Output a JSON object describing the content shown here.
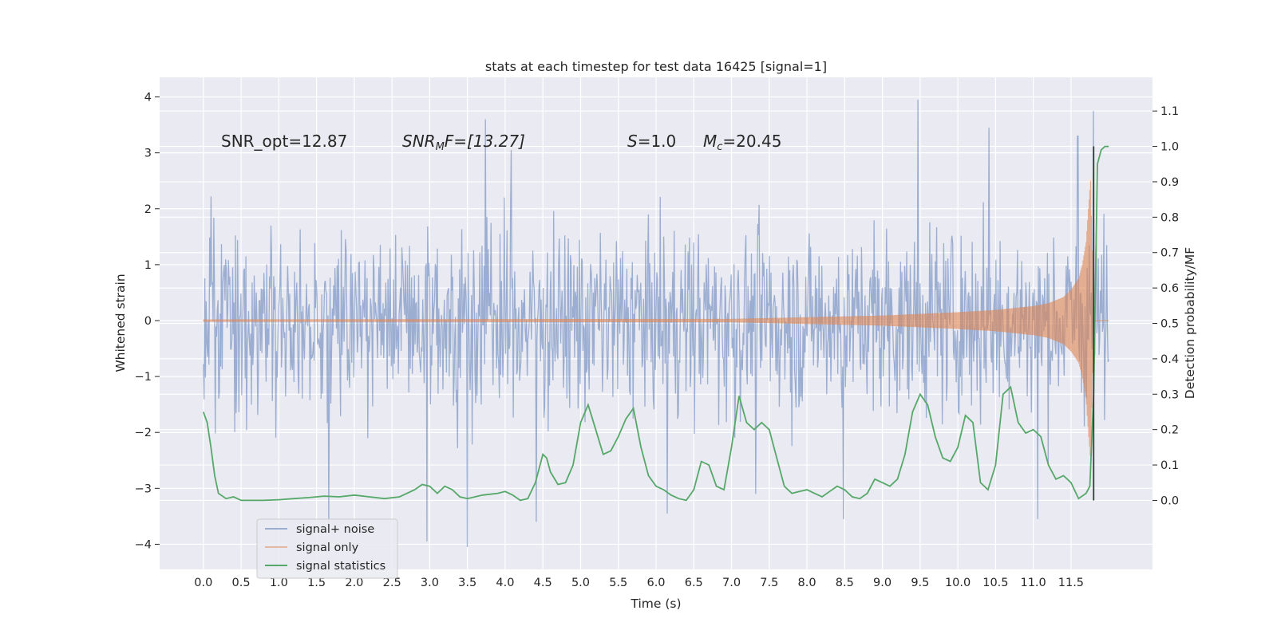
{
  "chart_data": {
    "type": "line",
    "title": "stats at each timestep for test data 16425 [signal=1]",
    "xlabel": "Time (s)",
    "ylabel_left": "Whitened strain",
    "ylabel_right": "Detection probability/MF",
    "xlim": [
      -0.58,
      12.58
    ],
    "ylim_left": [
      -4.45,
      4.35
    ],
    "ylim_right": [
      -0.195,
      1.195
    ],
    "x_ticks": [
      "0.0",
      "0.5",
      "1.0",
      "1.5",
      "2.0",
      "2.5",
      "3.0",
      "3.5",
      "4.0",
      "4.5",
      "5.0",
      "5.5",
      "6.0",
      "6.5",
      "7.0",
      "7.5",
      "8.0",
      "8.5",
      "9.0",
      "9.5",
      "10.0",
      "10.5",
      "11.0",
      "11.5"
    ],
    "y_ticks_left": [
      "−4",
      "−3",
      "−2",
      "−1",
      "0",
      "1",
      "2",
      "3",
      "4"
    ],
    "y_ticks_right": [
      "0.0",
      "0.1",
      "0.2",
      "0.3",
      "0.4",
      "0.5",
      "0.6",
      "0.7",
      "0.8",
      "0.9",
      "1.0",
      "1.1"
    ],
    "grid": true,
    "legend_position": "lower-left",
    "annotations": {
      "snr_opt": "SNR_opt=12.87",
      "snr_mf_sym": "SNR",
      "snr_mf_sub": "M",
      "snr_mf_rest": "F=[13.27]",
      "s_sym": "S",
      "s_rest": "=1.0",
      "mc_sym": "M",
      "mc_sub": "c",
      "mc_rest": "=20.45"
    },
    "series": [
      {
        "name": "signal+ noise",
        "color": "#4c72b0",
        "axis": "left",
        "x_range": [
          0.0,
          12.0
        ],
        "typical_envelope": [
          -1.8,
          1.8
        ],
        "peak_points": [
          {
            "x": 1.66,
            "y": -3.65
          },
          {
            "x": 2.96,
            "y": -3.95
          },
          {
            "x": 3.5,
            "y": -4.05
          },
          {
            "x": 3.74,
            "y": 3.6
          },
          {
            "x": 4.08,
            "y": 3.05
          },
          {
            "x": 4.41,
            "y": -3.6
          },
          {
            "x": 6.15,
            "y": -3.45
          },
          {
            "x": 7.32,
            "y": -3.1
          },
          {
            "x": 8.48,
            "y": -3.55
          },
          {
            "x": 9.47,
            "y": 3.95
          },
          {
            "x": 10.41,
            "y": 3.45
          },
          {
            "x": 11.06,
            "y": -3.55
          },
          {
            "x": 11.59,
            "y": 3.3
          },
          {
            "x": 11.8,
            "y": 3.75
          }
        ]
      },
      {
        "name": "signal only",
        "color": "#dd8452",
        "axis": "left",
        "x": [
          0.0,
          7.0,
          8.0,
          9.0,
          9.5,
          10.0,
          10.5,
          11.0,
          11.2,
          11.4,
          11.5,
          11.6,
          11.65,
          11.7,
          11.73,
          11.76,
          11.8,
          12.0
        ],
        "amplitude": [
          0.02,
          0.03,
          0.06,
          0.09,
          0.12,
          0.15,
          0.19,
          0.26,
          0.31,
          0.42,
          0.55,
          0.75,
          1.0,
          1.4,
          2.0,
          2.5,
          0.0,
          0.0
        ]
      },
      {
        "name": "signal statistics",
        "color": "#55a868",
        "axis": "right",
        "x": [
          0.0,
          0.05,
          0.1,
          0.15,
          0.2,
          0.3,
          0.4,
          0.5,
          0.6,
          0.8,
          1.0,
          1.2,
          1.4,
          1.6,
          1.8,
          2.0,
          2.2,
          2.4,
          2.6,
          2.8,
          2.9,
          3.0,
          3.1,
          3.2,
          3.3,
          3.4,
          3.5,
          3.7,
          3.9,
          4.0,
          4.1,
          4.2,
          4.3,
          4.4,
          4.5,
          4.55,
          4.6,
          4.7,
          4.8,
          4.9,
          5.0,
          5.1,
          5.2,
          5.3,
          5.4,
          5.5,
          5.6,
          5.7,
          5.8,
          5.9,
          6.0,
          6.1,
          6.2,
          6.3,
          6.4,
          6.5,
          6.6,
          6.7,
          6.8,
          6.9,
          7.0,
          7.1,
          7.2,
          7.3,
          7.4,
          7.5,
          7.6,
          7.7,
          7.8,
          7.9,
          8.0,
          8.1,
          8.2,
          8.3,
          8.4,
          8.5,
          8.6,
          8.7,
          8.8,
          8.9,
          9.0,
          9.1,
          9.2,
          9.3,
          9.4,
          9.5,
          9.6,
          9.7,
          9.8,
          9.9,
          10.0,
          10.1,
          10.2,
          10.3,
          10.4,
          10.5,
          10.6,
          10.7,
          10.8,
          10.9,
          11.0,
          11.1,
          11.2,
          11.3,
          11.4,
          11.5,
          11.6,
          11.7,
          11.75,
          11.8,
          11.85,
          11.9,
          11.95,
          12.0
        ],
        "values": [
          0.25,
          0.22,
          0.15,
          0.07,
          0.02,
          0.005,
          0.01,
          0.0,
          0.0,
          0.0,
          0.002,
          0.005,
          0.008,
          0.012,
          0.01,
          0.015,
          0.01,
          0.005,
          0.01,
          0.03,
          0.045,
          0.04,
          0.02,
          0.04,
          0.03,
          0.01,
          0.005,
          0.015,
          0.02,
          0.025,
          0.015,
          0.0,
          0.005,
          0.05,
          0.13,
          0.12,
          0.08,
          0.045,
          0.05,
          0.1,
          0.22,
          0.27,
          0.2,
          0.13,
          0.14,
          0.18,
          0.23,
          0.26,
          0.15,
          0.07,
          0.04,
          0.03,
          0.015,
          0.005,
          0.0,
          0.03,
          0.11,
          0.1,
          0.04,
          0.03,
          0.15,
          0.295,
          0.22,
          0.2,
          0.22,
          0.2,
          0.12,
          0.04,
          0.02,
          0.025,
          0.03,
          0.02,
          0.01,
          0.025,
          0.04,
          0.03,
          0.01,
          0.005,
          0.02,
          0.06,
          0.05,
          0.04,
          0.06,
          0.13,
          0.25,
          0.3,
          0.27,
          0.18,
          0.12,
          0.11,
          0.15,
          0.24,
          0.22,
          0.05,
          0.03,
          0.1,
          0.3,
          0.32,
          0.22,
          0.19,
          0.2,
          0.18,
          0.1,
          0.06,
          0.07,
          0.05,
          0.005,
          0.02,
          0.04,
          0.3,
          0.95,
          0.99,
          1.0,
          1.0
        ],
        "vertical_line_x": 11.8
      }
    ]
  }
}
